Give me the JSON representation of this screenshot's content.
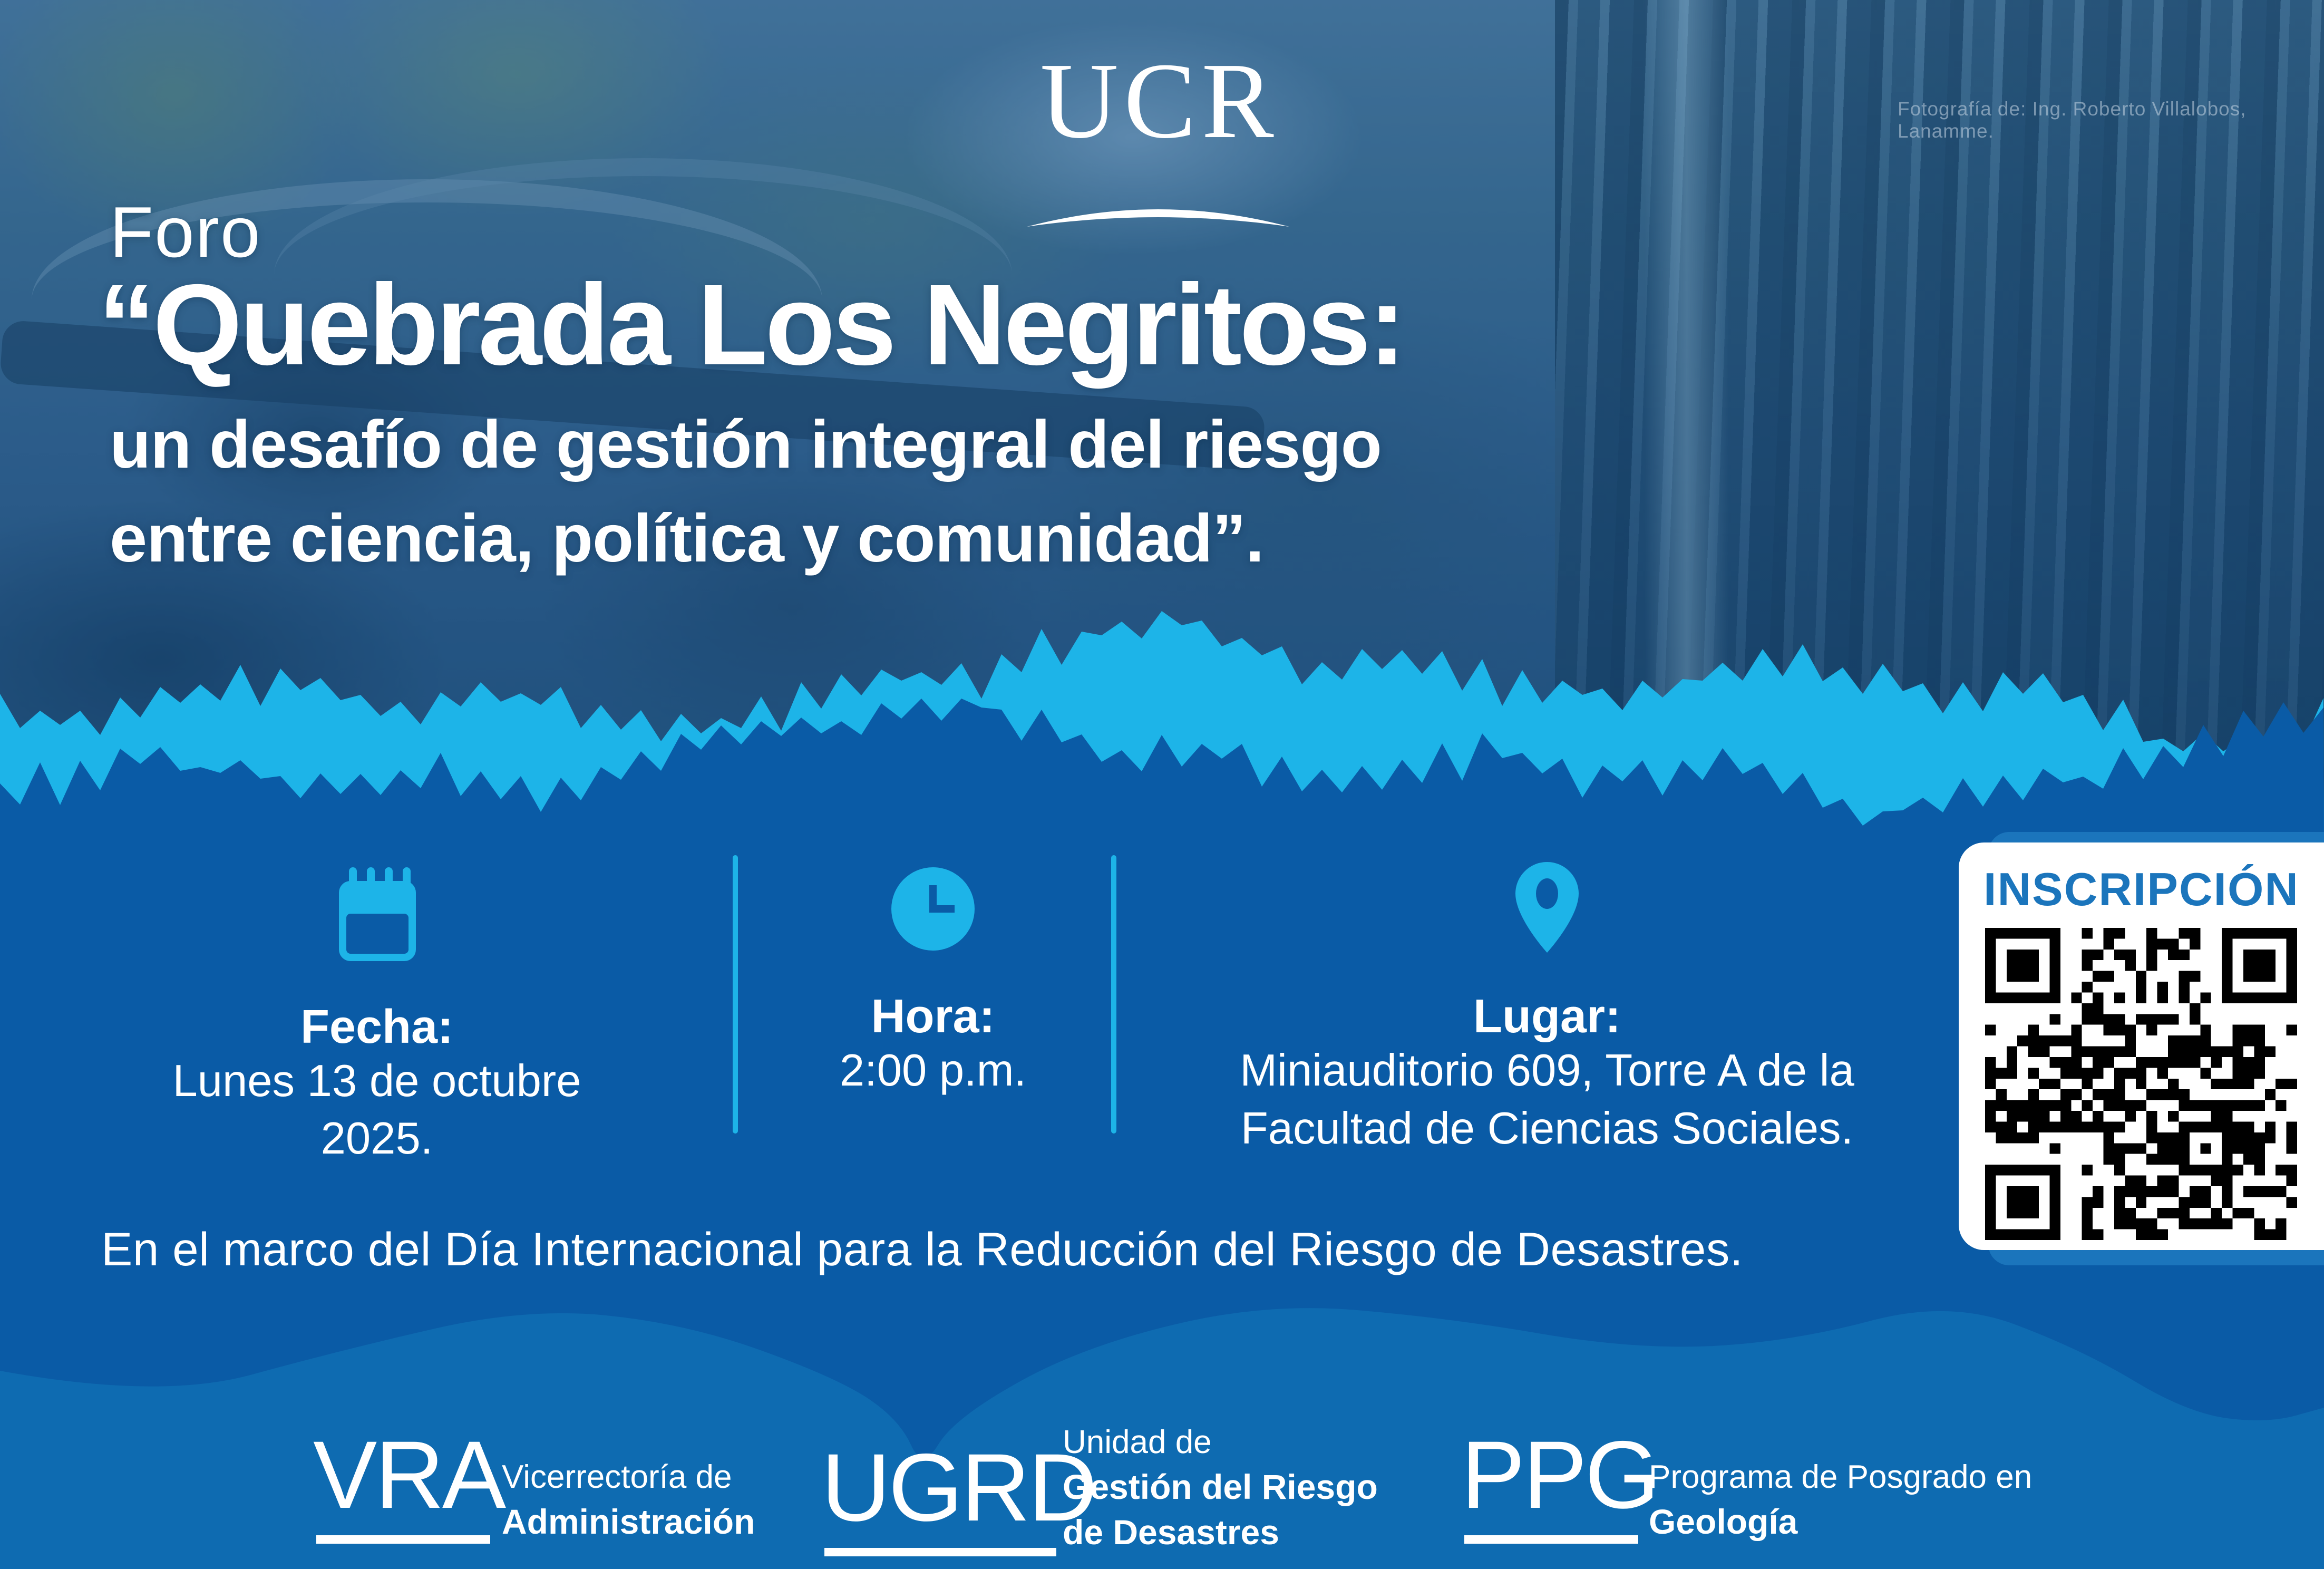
{
  "poster": {
    "photo_credit": "Fotografía de: Ing. Roberto Villalobos, Lanamme.",
    "university_logo": {
      "acronym": "UCR"
    },
    "title": {
      "kicker": "Foro",
      "line1": "“Quebrada Los Negritos:",
      "line2": "un desafío de gestión integral del riesgo",
      "line3": "entre ciencia, política y comunidad”."
    },
    "details": [
      {
        "icon": "calendar-icon",
        "label": "Fecha:",
        "value1": "Lunes 13 de octubre 2025.",
        "value2": ""
      },
      {
        "icon": "clock-icon",
        "label": "Hora:",
        "value1": "2:00 p.m.",
        "value2": ""
      },
      {
        "icon": "location-pin-icon",
        "label": "Lugar:",
        "value1": "Miniauditorio 609, Torre A de la",
        "value2": "Facultad de Ciencias Sociales."
      }
    ],
    "registration": {
      "title": "INSCRIPCIÓN",
      "qr": "qr-code"
    },
    "framing_note": "En el marco del Día Internacional para la Reducción del Riesgo de Desastres.",
    "sponsors": [
      {
        "acronym": "VRA",
        "line1": "Vicerrectoría de",
        "line2": "Administración",
        "line3": ""
      },
      {
        "acronym": "UGRD",
        "line1": "Unidad de",
        "line2": "Gestión del Riesgo",
        "line3": "de Desastres"
      },
      {
        "acronym": "PPG",
        "line1": "Programa de Posgrado en",
        "line2": "Geología",
        "line3": ""
      }
    ],
    "colors": {
      "band_blue": "#0a5ba6",
      "bottom_band_blue": "#0e6bb1",
      "accent_cyan": "#1db4e8",
      "registration_blue": "#1b75bc",
      "white": "#ffffff"
    }
  }
}
